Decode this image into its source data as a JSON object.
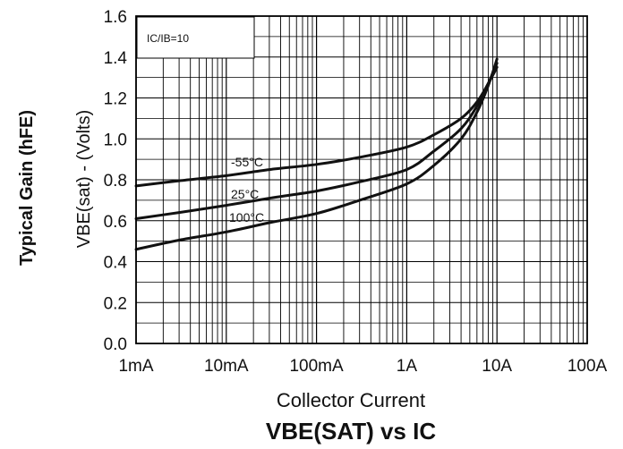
{
  "chart_data": {
    "type": "line",
    "title": "VBE(SAT) vs IC",
    "xlabel": "Collector Current",
    "ylabel": "VBE(sat) - (Volts)",
    "outer_label": "Typical Gain (hFE)",
    "annotation": "IC/IB=10",
    "x_scale": "log",
    "xlim": [
      0.001,
      100
    ],
    "ylim": [
      0.0,
      1.6
    ],
    "grid": true,
    "x_ticks": [
      {
        "value": 0.001,
        "label": "1mA"
      },
      {
        "value": 0.01,
        "label": "10mA"
      },
      {
        "value": 0.1,
        "label": "100mA"
      },
      {
        "value": 1,
        "label": "1A"
      },
      {
        "value": 10,
        "label": "10A"
      },
      {
        "value": 100,
        "label": "100A"
      }
    ],
    "y_ticks": [
      {
        "value": 0.0,
        "label": "0.0"
      },
      {
        "value": 0.2,
        "label": "0.2"
      },
      {
        "value": 0.4,
        "label": "0.4"
      },
      {
        "value": 0.6,
        "label": "0.6"
      },
      {
        "value": 0.8,
        "label": "0.8"
      },
      {
        "value": 1.0,
        "label": "1.0"
      },
      {
        "value": 1.2,
        "label": "1.2"
      },
      {
        "value": 1.4,
        "label": "1.4"
      },
      {
        "value": 1.6,
        "label": "1.6"
      }
    ],
    "series": [
      {
        "name": "-55°C",
        "x": [
          0.001,
          0.003,
          0.01,
          0.03,
          0.1,
          0.3,
          1,
          2,
          4,
          6,
          8,
          10
        ],
        "y": [
          0.77,
          0.795,
          0.82,
          0.85,
          0.875,
          0.91,
          0.96,
          1.02,
          1.1,
          1.18,
          1.27,
          1.35
        ]
      },
      {
        "name": "25°C",
        "x": [
          0.001,
          0.003,
          0.01,
          0.03,
          0.1,
          0.3,
          1,
          2,
          4,
          6,
          8,
          10
        ],
        "y": [
          0.61,
          0.64,
          0.675,
          0.71,
          0.745,
          0.79,
          0.85,
          0.94,
          1.05,
          1.16,
          1.27,
          1.37
        ]
      },
      {
        "name": "100°C",
        "x": [
          0.001,
          0.003,
          0.01,
          0.03,
          0.1,
          0.3,
          1,
          2,
          4,
          6,
          8,
          10
        ],
        "y": [
          0.46,
          0.505,
          0.545,
          0.59,
          0.635,
          0.7,
          0.78,
          0.87,
          1.0,
          1.13,
          1.26,
          1.39
        ]
      }
    ]
  }
}
